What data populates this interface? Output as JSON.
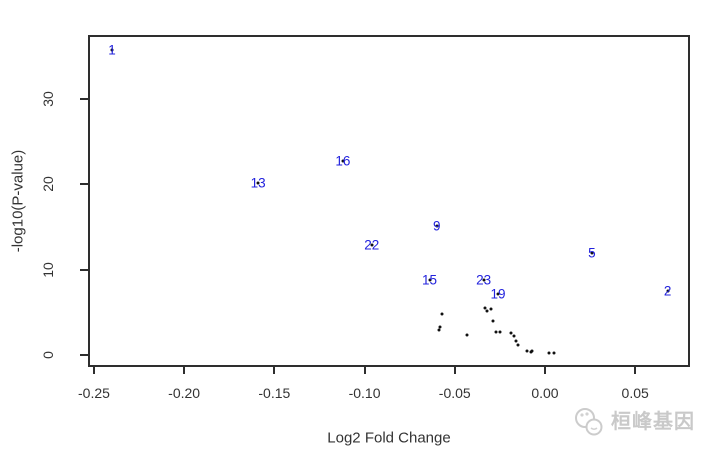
{
  "watermark": {
    "text": "桓峰基因",
    "logo_icon": "two-circles-logo",
    "color": "#c9c9c9"
  },
  "chart_data": {
    "type": "scatter",
    "title": "",
    "xlabel": "Log2 Fold Change",
    "ylabel": "-log10(P-value)",
    "xlim": [
      -0.2533,
      0.0804
    ],
    "ylim": [
      -1.4,
      37.5
    ],
    "grid": false,
    "legend": "none",
    "x_ticks": [
      -0.25,
      -0.2,
      -0.15,
      -0.1,
      -0.05,
      0.0,
      0.05
    ],
    "x_tick_labels": [
      "-0.25",
      "-0.20",
      "-0.15",
      "-0.10",
      "-0.05",
      "0.00",
      "0.05"
    ],
    "y_ticks": [
      0,
      10,
      20,
      30
    ],
    "y_tick_labels": [
      "0",
      "10",
      "20",
      "30"
    ],
    "colors": {
      "gene_label": "#2222dd",
      "point": "#111111",
      "axis": "#2e2e2e"
    },
    "labeled_points": [
      {
        "label": "1",
        "x": -0.24,
        "y": 35.8
      },
      {
        "label": "16",
        "x": -0.112,
        "y": 22.7
      },
      {
        "label": "13",
        "x": -0.159,
        "y": 20.2
      },
      {
        "label": "9",
        "x": -0.06,
        "y": 15.1
      },
      {
        "label": "22",
        "x": -0.096,
        "y": 12.9
      },
      {
        "label": "5",
        "x": 0.026,
        "y": 12.0
      },
      {
        "label": "15",
        "x": -0.064,
        "y": 8.8
      },
      {
        "label": "23",
        "x": -0.034,
        "y": 8.8
      },
      {
        "label": "2",
        "x": 0.068,
        "y": 7.5
      },
      {
        "label": "19",
        "x": -0.026,
        "y": 7.1
      }
    ],
    "points": [
      [
        -0.057,
        4.8
      ],
      [
        -0.058,
        3.3
      ],
      [
        -0.059,
        2.9
      ],
      [
        -0.043,
        2.3
      ],
      [
        -0.033,
        5.5
      ],
      [
        -0.032,
        5.2
      ],
      [
        -0.03,
        5.4
      ],
      [
        -0.029,
        4.0
      ],
      [
        -0.027,
        2.7
      ],
      [
        -0.025,
        2.7
      ],
      [
        -0.019,
        2.6
      ],
      [
        -0.017,
        2.2
      ],
      [
        -0.016,
        1.6
      ],
      [
        -0.015,
        1.2
      ],
      [
        -0.01,
        0.5
      ],
      [
        -0.008,
        0.4
      ],
      [
        -0.007,
        0.5
      ],
      [
        0.002,
        0.2
      ],
      [
        0.005,
        0.2
      ]
    ]
  }
}
